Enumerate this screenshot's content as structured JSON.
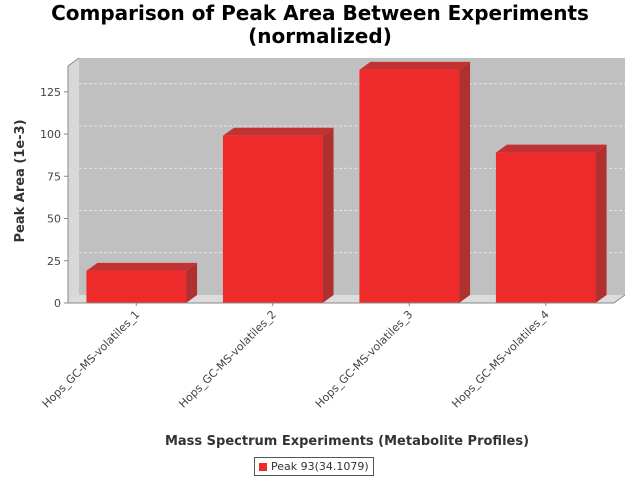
{
  "chart_data": {
    "type": "bar",
    "title_line1": "Comparison of Peak Area Between Experiments",
    "title_line2": "(normalized)",
    "xlabel": "Mass Spectrum Experiments (Metabolite Profiles)",
    "ylabel": "Peak Area (1e-3)",
    "categories": [
      "Hops_GC-MS-volatiles_1",
      "Hops_GC-MS-volatiles_2",
      "Hops_GC-MS-volatiles_3",
      "Hops_GC-MS-volatiles_4"
    ],
    "series": [
      {
        "name": "Peak 93(34.1079)",
        "values": [
          19,
          99,
          138,
          89
        ],
        "color": "#ee2a2a"
      }
    ],
    "yticks": [
      0,
      25,
      50,
      75,
      100,
      125
    ],
    "ylim": [
      0,
      145
    ],
    "grid": true,
    "legend_position": "bottom",
    "plot_background": "#c0c0c0",
    "three_d": true
  }
}
